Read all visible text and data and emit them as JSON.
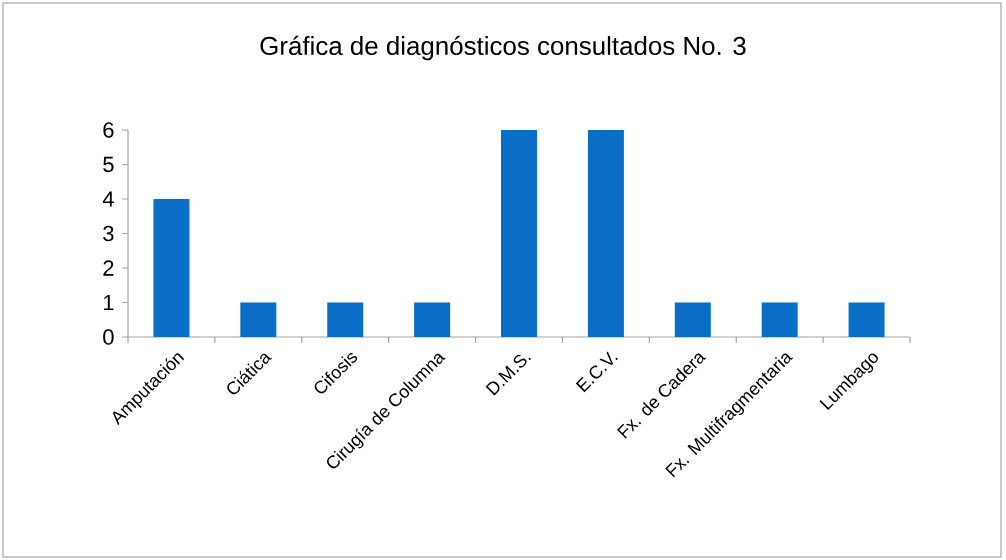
{
  "chart_data": {
    "type": "bar",
    "title": "Gráfica de diagnósticos consultados  No. 3",
    "categories": [
      "Amputación",
      "Ciática",
      "Cifosis",
      "Cirugía de Columna",
      "D.M.S.",
      "E.C.V.",
      "Fx. de Cadera",
      "Fx. Multifragmentaria",
      "Lumbago"
    ],
    "values": [
      4,
      1,
      1,
      1,
      6,
      6,
      1,
      1,
      1
    ],
    "color": "#0a6ec6",
    "ylim": [
      0,
      6
    ],
    "yticks": [
      0,
      1,
      2,
      3,
      4,
      5,
      6
    ]
  }
}
